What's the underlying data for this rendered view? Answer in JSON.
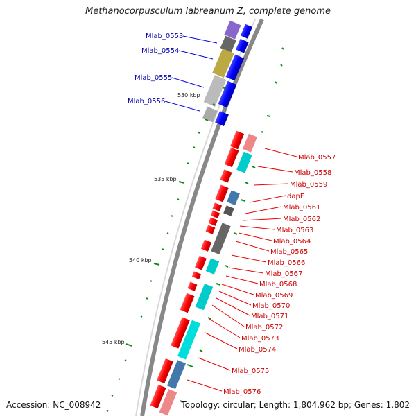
{
  "title": "Methanocorpusculum labreanum Z, complete genome",
  "accession": "Accession: NC_008942",
  "topology": "Topology: circular; Length: 1,804,962 bp; Genes: 1,802",
  "ticks": [
    "530 kbp",
    "535 kbp",
    "540 kbp",
    "545 kbp"
  ],
  "left_labels": [
    "Mlab_0553",
    "Mlab_0554",
    "Mlab_0555",
    "Mlab_0556"
  ],
  "right_labels": [
    "Mlab_0557",
    "Mlab_0558",
    "Mlab_0559",
    "dapF",
    "Mlab_0561",
    "Mlab_0562",
    "Mlab_0563",
    "Mlab_0564",
    "Mlab_0565",
    "Mlab_0566",
    "Mlab_0567",
    "Mlab_0568",
    "Mlab_0569",
    "Mlab_0570",
    "Mlab_0571",
    "Mlab_0572",
    "Mlab_0573",
    "Mlab_0574",
    "Mlab_0575",
    "Mlab_0576"
  ],
  "colors": {
    "forward_strand": "#0000ee",
    "reverse_strand": "#ee0000",
    "forward_label": "#0000aa",
    "reverse_label": "#cc0000",
    "backbone": "#888888",
    "gc_skew": "#118811"
  }
}
